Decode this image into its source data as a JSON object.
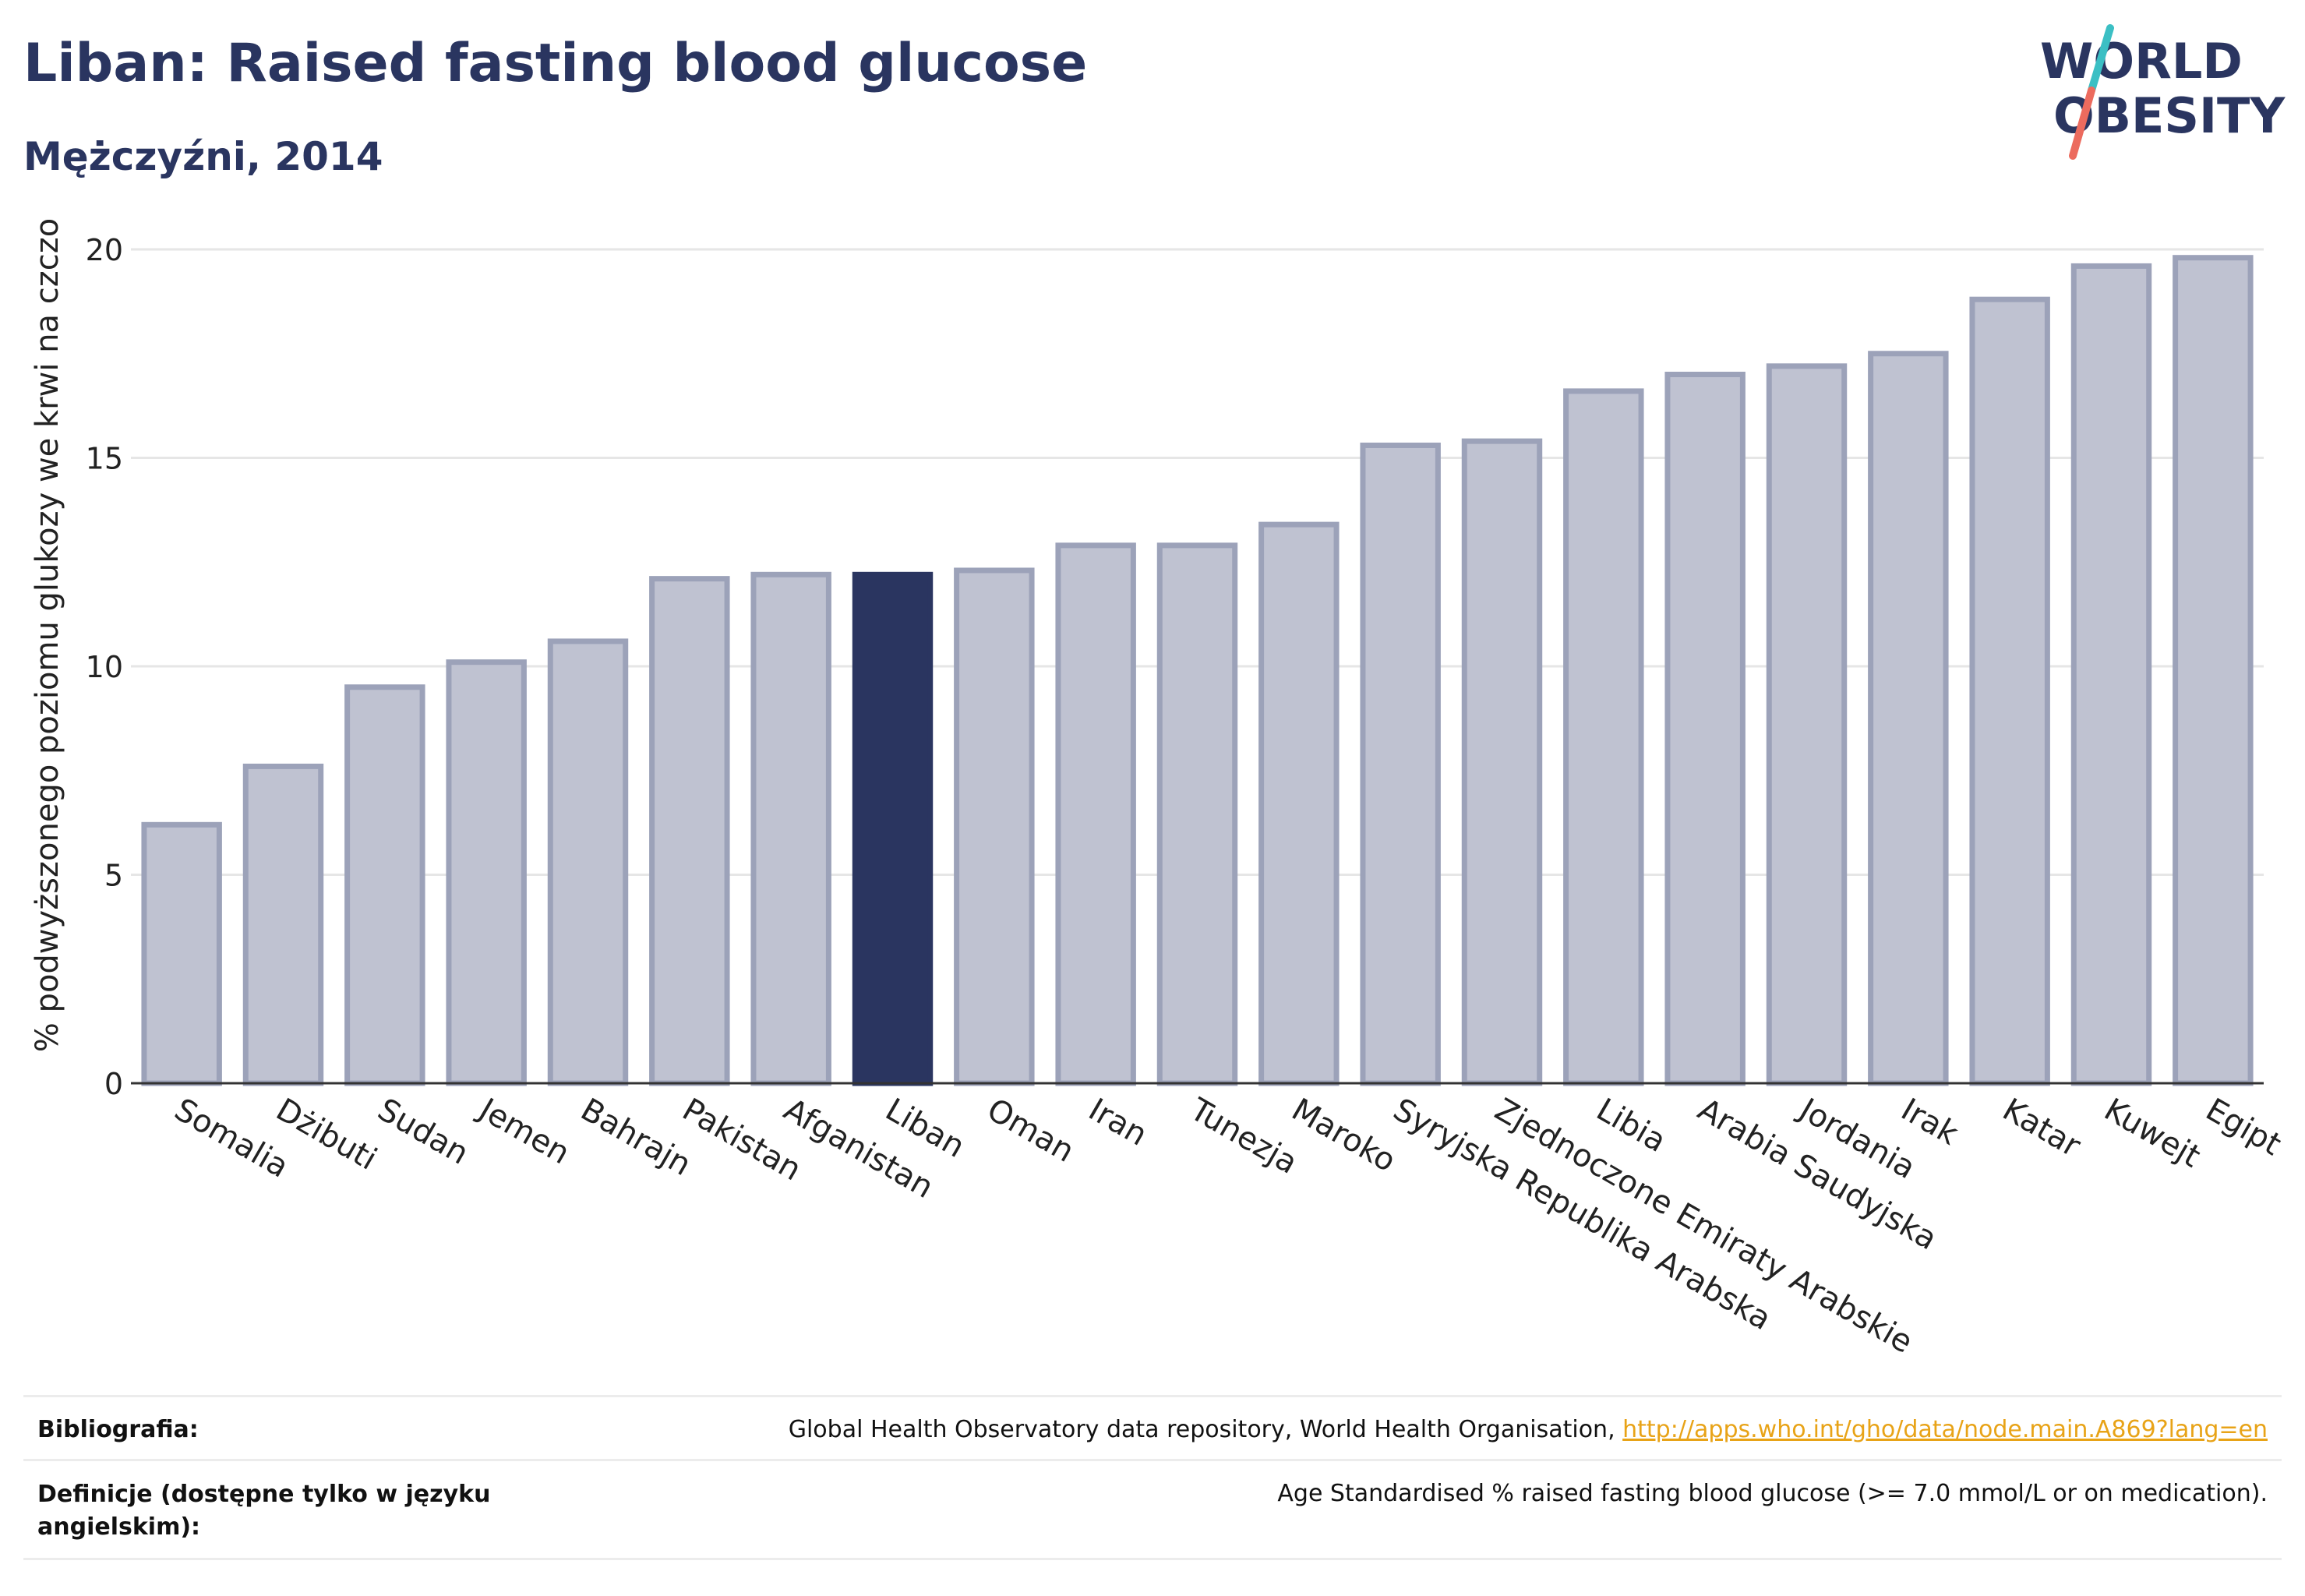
{
  "header": {
    "title": "Liban: Raised fasting blood glucose",
    "subtitle": "Mężczyźni, 2014"
  },
  "logo": {
    "line1": "WORLD",
    "line2": "OBESITY",
    "slash_colors": [
      "#3bbfc4",
      "#ec6b5e"
    ]
  },
  "chart_data": {
    "type": "bar",
    "title": "Liban: Raised fasting blood glucose",
    "subtitle": "Mężczyźni, 2014",
    "ylabel": "% podwyższonego poziomu glukozy we krwi na czczo",
    "xlabel": "",
    "ylim": [
      0,
      20
    ],
    "yticks": [
      0,
      5,
      10,
      15,
      20
    ],
    "grid": true,
    "highlight": "Liban",
    "colors": {
      "bar": "#bfc2d1",
      "bar_border": "#9ca2b9",
      "highlight": "#2a3560",
      "grid": "#e6e6e6",
      "axis": "#333333"
    },
    "categories": [
      "Somalia",
      "Dżibuti",
      "Sudan",
      "Jemen",
      "Bahrajn",
      "Pakistan",
      "Afganistan",
      "Liban",
      "Oman",
      "Iran",
      "Tunezja",
      "Maroko",
      "Syryjska Republika Arabska",
      "Zjednoczone Emiraty Arabskie",
      "Libia",
      "Arabia Saudyjska",
      "Jordania",
      "Irak",
      "Katar",
      "Kuwejt",
      "Egipt"
    ],
    "values": [
      6.2,
      7.6,
      9.5,
      10.1,
      10.6,
      12.1,
      12.2,
      12.2,
      12.3,
      12.9,
      12.9,
      13.4,
      15.3,
      15.4,
      16.6,
      17.0,
      17.2,
      17.5,
      18.8,
      19.6,
      19.8
    ]
  },
  "footer": {
    "bibliography_label": "Bibliografia:",
    "bibliography_text": "Global Health Observatory data repository, World Health Organisation, ",
    "bibliography_link": "http://apps.who.int/gho/data/node.main.A869?lang=en",
    "definitions_label": "Definicje (dostępne tylko w języku angielskim):",
    "definitions_text": "Age Standardised % raised fasting blood glucose (>= 7.0 mmol/L or on medication)."
  }
}
